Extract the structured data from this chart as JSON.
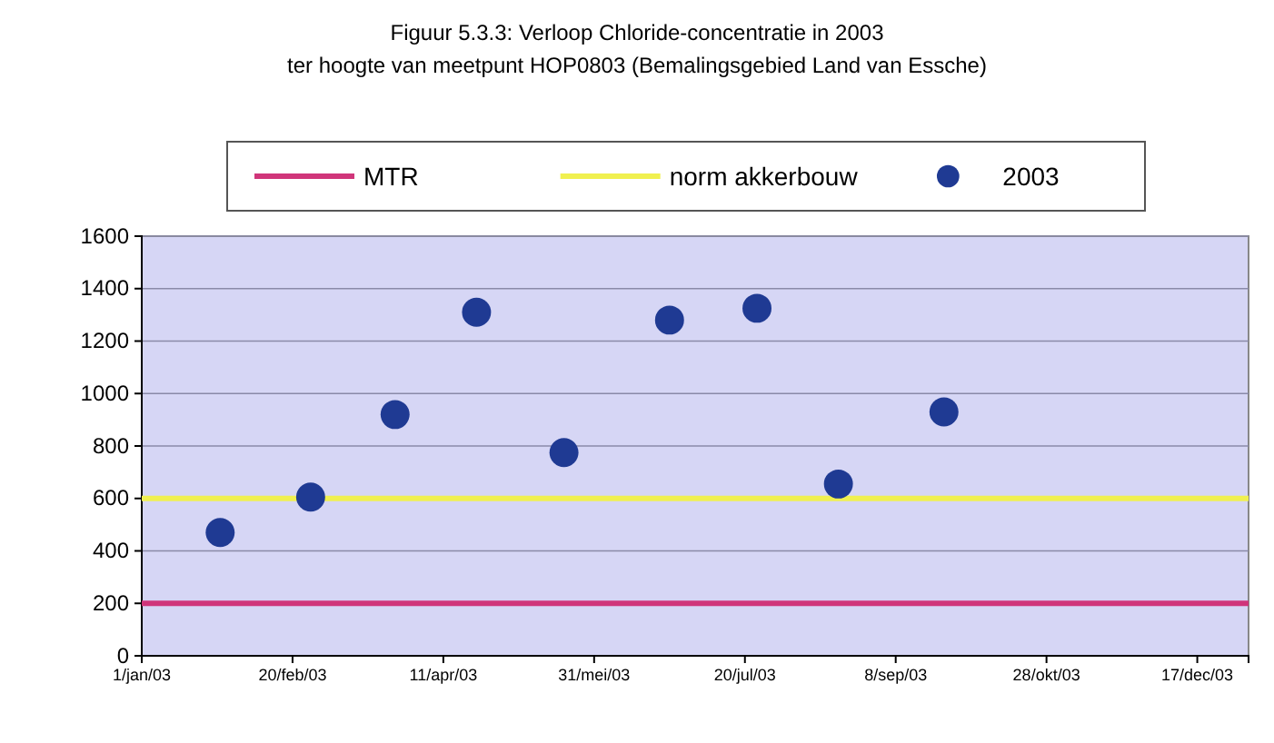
{
  "chart_data": {
    "type": "scatter",
    "title": "Figuur 5.3.3: Verloop Chloride-concentratie in 2003",
    "subtitle": "ter hoogte van meetpunt HOP0803 (Bemalingsgebied Land van Essche)",
    "series": [
      {
        "name": "2003",
        "color": "#1f3a93",
        "x": [
          "2003-01-27",
          "2003-02-26",
          "2003-03-26",
          "2003-04-22",
          "2003-05-21",
          "2003-06-25",
          "2003-07-24",
          "2003-08-20",
          "2003-09-24"
        ],
        "values": [
          470,
          605,
          920,
          1310,
          775,
          1280,
          1325,
          655,
          930
        ]
      }
    ],
    "ref_lines": [
      {
        "axis": "y",
        "value": 200,
        "label": "MTR",
        "color": "#d0357a"
      },
      {
        "axis": "y",
        "value": 600,
        "label": "norm akkerbouw",
        "color": "#f0f050"
      }
    ],
    "xlim": [
      "2003-01-01",
      "2004-01-03"
    ],
    "xticks": [
      {
        "value": "2003-01-01",
        "label": "1/jan/03"
      },
      {
        "value": "2003-02-20",
        "label": "20/feb/03"
      },
      {
        "value": "2003-04-11",
        "label": "11/apr/03"
      },
      {
        "value": "2003-05-31",
        "label": "31/mei/03"
      },
      {
        "value": "2003-07-20",
        "label": "20/jul/03"
      },
      {
        "value": "2003-09-08",
        "label": "8/sep/03"
      },
      {
        "value": "2003-10-28",
        "label": "28/okt/03"
      },
      {
        "value": "2003-12-17",
        "label": "17/dec/03"
      }
    ],
    "ylim": [
      0,
      1600
    ],
    "yticks": [
      0,
      200,
      400,
      600,
      800,
      1000,
      1200,
      1400,
      1600
    ],
    "grid": "y",
    "legend": "top",
    "marker": "circle"
  }
}
